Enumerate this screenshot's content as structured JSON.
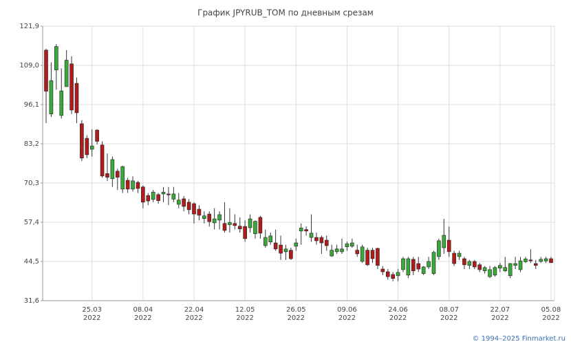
{
  "chart_data": {
    "type": "candlestick",
    "title": "График JPYRUB_TOM по дневным срезам",
    "footer": "© 1994–2025 Finmarket.ru",
    "up_color": "#3aa83a",
    "down_color": "#b01c1c",
    "categories": [
      null,
      null,
      null,
      null,
      null,
      null,
      null,
      null,
      null,
      {
        "date": "25.03",
        "year": "2022"
      },
      null,
      null,
      null,
      null,
      null,
      null,
      null,
      null,
      null,
      {
        "date": "08.04",
        "year": "2022"
      },
      null,
      null,
      null,
      null,
      null,
      null,
      null,
      null,
      null,
      {
        "date": "22.04",
        "year": "2022"
      },
      null,
      null,
      null,
      null,
      null,
      null,
      null,
      null,
      null,
      {
        "date": "12.05",
        "year": "2022"
      },
      null,
      null,
      null,
      null,
      null,
      null,
      null,
      null,
      null,
      {
        "date": "26.05",
        "year": "2022"
      },
      null,
      null,
      null,
      null,
      null,
      null,
      null,
      null,
      null,
      {
        "date": "09.06",
        "year": "2022"
      },
      null,
      null,
      null,
      null,
      null,
      null,
      null,
      null,
      null,
      {
        "date": "24.06",
        "year": "2022"
      },
      null,
      null,
      null,
      null,
      null,
      null,
      null,
      null,
      null,
      {
        "date": "08.07",
        "year": "2022"
      },
      null,
      null,
      null,
      null,
      null,
      null,
      null,
      null,
      null,
      {
        "date": "22.07",
        "year": "2022"
      },
      null,
      null,
      null,
      null,
      null,
      null,
      null,
      null,
      null,
      {
        "date": "05.08",
        "year": "2022"
      }
    ],
    "open": [
      114,
      93,
      107.5,
      92.5,
      102,
      109.5,
      103.1,
      89.8,
      85,
      81.4,
      87.7,
      82.8,
      73.4,
      71.7,
      74.2,
      68.3,
      71.2,
      68.3,
      70.5,
      69,
      66.2,
      64.9,
      66.5,
      66.7,
      66.7,
      65,
      63.3,
      65.1,
      64,
      63.5,
      61.7,
      58.6,
      60.1,
      57.2,
      58.1,
      57,
      56.6,
      57,
      56.1,
      56,
      55.6,
      53.6,
      59,
      49.7,
      50.9,
      50.6,
      49.9,
      47.7,
      48.2,
      49.5,
      54.5,
      55,
      52.4,
      52.4,
      52.4,
      51.5,
      46.3,
      47.7,
      47.7,
      49.3,
      49.5,
      48.2,
      44.5,
      48.2,
      48.2,
      48.8,
      42,
      41.1,
      40.2,
      39.8,
      41.8,
      40,
      45.2,
      43.8,
      40.5,
      42.7,
      40.5,
      46.1,
      49,
      51.5,
      47.2,
      46.1,
      45.4,
      43.2,
      44.5,
      43.4,
      41.4,
      39.5,
      40,
      42.3,
      41.4,
      39.8,
      43.2,
      41.8,
      44.4,
      45,
      43.8,
      44.5,
      44.7,
      45.4
    ],
    "high": [
      114.5,
      110,
      116,
      108,
      114,
      112,
      105,
      91,
      86,
      88,
      88,
      84,
      80,
      79,
      75,
      76,
      72,
      72.5,
      71,
      69.5,
      67,
      68,
      67,
      69,
      69,
      69,
      67,
      66,
      65,
      64,
      63,
      61,
      61,
      62,
      61,
      64,
      62,
      60,
      59,
      58,
      60,
      58,
      59.5,
      55,
      54,
      55,
      53,
      50,
      49,
      52,
      57,
      56,
      60,
      54,
      53,
      53,
      50,
      50,
      52,
      51,
      52,
      50,
      50,
      49,
      49,
      49,
      43,
      42,
      41,
      42,
      46,
      46,
      46,
      46,
      43,
      46,
      48,
      52,
      58.5,
      56,
      48,
      48,
      46,
      45,
      45,
      44,
      43,
      43,
      43,
      44,
      46,
      44,
      46,
      46,
      46,
      48.5,
      45,
      46,
      46,
      46
    ],
    "low": [
      90,
      92,
      101,
      91.5,
      102,
      93,
      90,
      77.5,
      78.5,
      79,
      83,
      72,
      71,
      69,
      68,
      67,
      67,
      67.5,
      67,
      62,
      63,
      64,
      63.5,
      64,
      63,
      64,
      62,
      61,
      60,
      57,
      58,
      57,
      56,
      55,
      55,
      54,
      54,
      55,
      54,
      51,
      54,
      52,
      52,
      49,
      50,
      48,
      45,
      45,
      45,
      48,
      50,
      53,
      51,
      50,
      47,
      48,
      46,
      47,
      47,
      48,
      49,
      46,
      44,
      43,
      44,
      42,
      40,
      38.5,
      38,
      38,
      41,
      39,
      40,
      41,
      40,
      42,
      40,
      45,
      47,
      46,
      43,
      45,
      42,
      42,
      42,
      41,
      40.5,
      39,
      39.5,
      41,
      41,
      39,
      42,
      41,
      44,
      44,
      42,
      44,
      44,
      44
    ],
    "close": [
      100.5,
      104,
      115.2,
      100.6,
      110.7,
      94.3,
      93.4,
      78.5,
      79.6,
      82.5,
      84,
      72.6,
      72.2,
      78,
      72.2,
      75.7,
      68.3,
      71,
      68.5,
      64,
      64.4,
      67.3,
      64.5,
      67.3,
      66.4,
      66.7,
      64.7,
      62.6,
      61.5,
      60.1,
      59.7,
      59.5,
      57.6,
      58.5,
      59.9,
      54.7,
      57.3,
      56.3,
      55.2,
      52,
      58.5,
      57.7,
      53.8,
      52.4,
      52.9,
      48.6,
      47.2,
      48.6,
      45.4,
      50.6,
      55.5,
      54.5,
      53.8,
      51.3,
      50.6,
      49.7,
      48.2,
      48.6,
      48.6,
      50.3,
      50.6,
      47,
      49.3,
      43.4,
      45.4,
      43.2,
      41.1,
      39.5,
      38.9,
      40.9,
      45.4,
      45.4,
      41.4,
      42,
      42.7,
      44.5,
      47.5,
      51.3,
      53.1,
      47.7,
      43.8,
      47.2,
      43.4,
      44.5,
      42.7,
      41.8,
      42.5,
      41.8,
      42.5,
      43.2,
      42.5,
      43.8,
      43.8,
      44.7,
      45.3,
      44.7,
      43.2,
      45.2,
      45.4,
      44.1
    ],
    "ylim": [
      31.6,
      121.9
    ],
    "yticks": [
      {
        "value": 31.6,
        "label": "31,6"
      },
      {
        "value": 44.5,
        "label": "44,5"
      },
      {
        "value": 57.4,
        "label": "57,4"
      },
      {
        "value": 70.3,
        "label": "70,3"
      },
      {
        "value": 83.2,
        "label": "83,2"
      },
      {
        "value": 96.1,
        "label": "96,1"
      },
      {
        "value": 109.0,
        "label": "109,0"
      },
      {
        "value": 121.9,
        "label": "121,9"
      }
    ],
    "grid": true
  }
}
